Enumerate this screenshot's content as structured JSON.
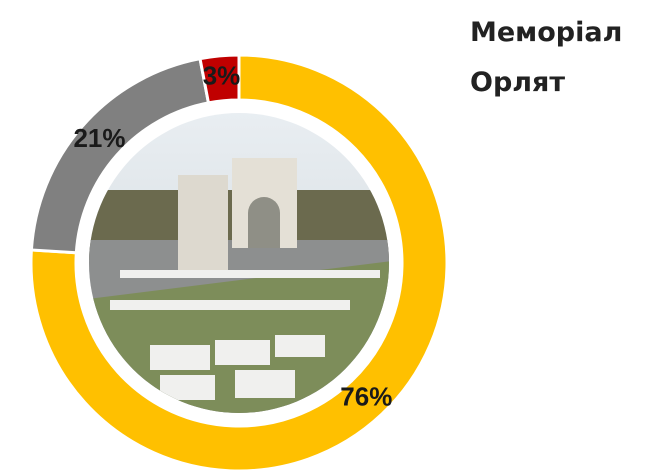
{
  "chart_data": {
    "type": "donut",
    "title": "Меморіал Орлят",
    "categories": [
      "76%",
      "21%",
      "3%"
    ],
    "values": [
      76,
      21,
      3
    ],
    "value_labels": [
      "76%",
      "21%",
      "3%"
    ],
    "colors": [
      "#FFC000",
      "#808080",
      "#C00000"
    ]
  }
}
